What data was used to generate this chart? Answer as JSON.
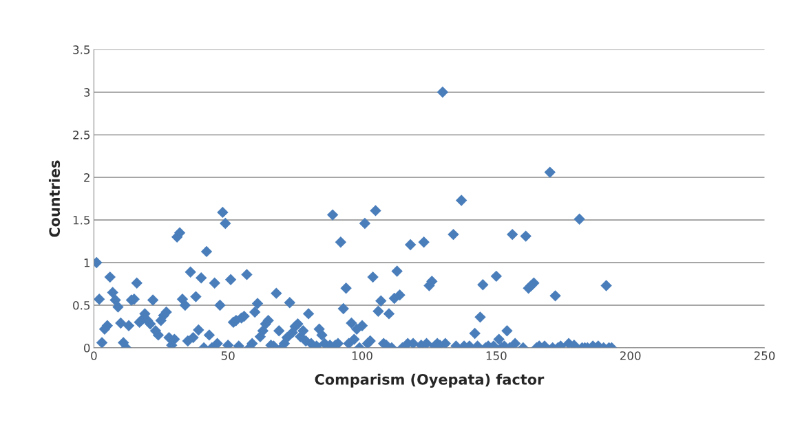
{
  "chart_data": {
    "type": "scatter",
    "xlabel": "Comparism (Oyepata) factor",
    "ylabel": "Countries",
    "x": [
      1,
      2,
      3,
      4,
      5,
      6,
      7,
      8,
      9,
      10,
      11,
      12,
      13,
      14,
      15,
      16,
      17,
      18,
      19,
      20,
      21,
      22,
      23,
      24,
      25,
      26,
      27,
      28,
      29,
      30,
      31,
      32,
      33,
      34,
      35,
      36,
      37,
      38,
      39,
      40,
      41,
      42,
      43,
      44,
      45,
      46,
      47,
      48,
      49,
      50,
      51,
      52,
      53,
      54,
      55,
      56,
      57,
      58,
      59,
      60,
      61,
      62,
      63,
      64,
      65,
      66,
      67,
      68,
      69,
      70,
      71,
      72,
      73,
      74,
      75,
      76,
      77,
      78,
      79,
      80,
      81,
      83,
      84,
      85,
      86,
      88,
      89,
      90,
      91,
      92,
      93,
      94,
      95,
      96,
      97,
      98,
      99,
      100,
      101,
      102,
      103,
      104,
      105,
      106,
      107,
      108,
      109,
      110,
      111,
      112,
      113,
      114,
      115,
      117,
      118,
      119,
      122,
      123,
      124,
      125,
      126,
      127,
      128,
      129,
      130,
      131,
      134,
      135,
      137,
      138,
      140,
      142,
      143,
      144,
      145,
      146,
      147,
      149,
      150,
      151,
      152,
      153,
      154,
      155,
      156,
      157,
      160,
      161,
      162,
      163,
      164,
      165,
      166,
      168,
      170,
      171,
      172,
      173,
      174,
      177,
      179,
      181,
      182,
      183,
      184,
      186,
      188,
      190,
      191,
      192,
      193
    ],
    "values": [
      1.0,
      0.57,
      0.06,
      0.22,
      0.26,
      0.83,
      0.65,
      0.56,
      0.48,
      0.29,
      0.06,
      0.0,
      0.26,
      0.56,
      0.57,
      0.76,
      0.3,
      0.33,
      0.4,
      0.32,
      0.28,
      0.56,
      0.2,
      0.15,
      0.32,
      0.38,
      0.42,
      0.12,
      0.03,
      0.1,
      1.3,
      1.35,
      0.57,
      0.5,
      0.08,
      0.89,
      0.12,
      0.6,
      0.21,
      0.82,
      0.0,
      1.13,
      0.15,
      0.0,
      0.76,
      0.05,
      0.5,
      1.59,
      1.46,
      0.03,
      0.8,
      0.3,
      0.32,
      0.02,
      0.35,
      0.37,
      0.86,
      0.0,
      0.05,
      0.42,
      0.52,
      0.13,
      0.2,
      0.28,
      0.32,
      0.03,
      0.02,
      0.64,
      0.2,
      0.0,
      0.05,
      0.12,
      0.53,
      0.18,
      0.25,
      0.28,
      0.13,
      0.2,
      0.08,
      0.4,
      0.05,
      0.02,
      0.22,
      0.15,
      0.05,
      0.03,
      1.56,
      0.03,
      0.05,
      1.24,
      0.46,
      0.7,
      0.05,
      0.29,
      0.1,
      0.22,
      0.0,
      0.26,
      1.46,
      0.05,
      0.08,
      0.83,
      1.61,
      0.43,
      0.55,
      0.05,
      0.03,
      0.4,
      0.0,
      0.58,
      0.9,
      0.62,
      0.0,
      0.05,
      1.21,
      0.05,
      0.03,
      1.24,
      0.05,
      0.73,
      0.78,
      0.02,
      0.05,
      0.03,
      3.0,
      0.05,
      1.33,
      0.02,
      1.73,
      0.02,
      0.02,
      0.17,
      0.02,
      0.36,
      0.74,
      0.0,
      0.02,
      0.02,
      0.84,
      0.1,
      0.0,
      0.02,
      0.2,
      0.0,
      1.33,
      0.05,
      0.0,
      1.31,
      0.7,
      0.73,
      0.76,
      0.0,
      0.02,
      0.02,
      2.06,
      0.0,
      0.61,
      0.0,
      0.02,
      0.05,
      0.03,
      1.51,
      0.0,
      0.0,
      0.0,
      0.02,
      0.02,
      0.0,
      0.73,
      0.0,
      0.0
    ],
    "color": "#4a7ebb",
    "marker": "diamond",
    "xlim": [
      0,
      250
    ],
    "xticks": [
      0,
      50,
      100,
      150,
      200,
      250
    ],
    "ylim": [
      0,
      3.5
    ],
    "yticks": [
      0,
      0.5,
      1,
      1.5,
      2,
      2.5,
      3,
      3.5
    ],
    "grid": "y",
    "legend": false
  }
}
